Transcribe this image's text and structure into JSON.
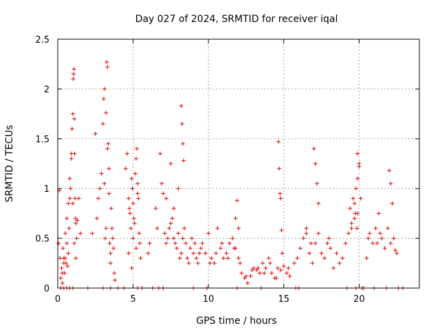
{
  "chart_data": {
    "type": "scatter",
    "title": "Day 027 of 2024, SRMTID for receiver iqal",
    "xlabel": "GPS time / hours",
    "ylabel": "SRMTID / TECUs",
    "xlim": [
      0,
      24
    ],
    "ylim": [
      0,
      2.5
    ],
    "xticks": [
      0,
      5,
      10,
      15,
      20
    ],
    "xtick_labels": [
      "0",
      "5",
      "10",
      "15",
      "20"
    ],
    "yticks": [
      0,
      0.5,
      1,
      1.5,
      2,
      2.5
    ],
    "ytick_labels": [
      "0",
      "0.5",
      "1",
      "1.5",
      "2",
      "2.5"
    ],
    "grid": true,
    "marker": "+",
    "color": "#e00000",
    "series": [
      {
        "name": "SRMTID",
        "x": [
          0.05,
          0.1,
          0.15,
          0.2,
          0.25,
          0.3,
          0.35,
          0.4,
          0.45,
          0.5,
          0.55,
          0.6,
          0.65,
          0.7,
          0.75,
          0.8,
          0.85,
          0.9,
          0.95,
          1.0,
          1.02,
          1.05,
          1.08,
          1.1,
          1.12,
          1.15,
          1.18,
          1.2,
          1.25,
          1.3,
          1.4,
          1.5,
          0.3,
          0.4,
          0.5,
          0.6,
          0.7,
          0.8,
          0.9,
          1.0,
          1.1,
          1.2,
          2.3,
          2.5,
          2.6,
          2.7,
          2.8,
          2.9,
          3.0,
          3.05,
          3.1,
          3.15,
          3.2,
          3.25,
          3.3,
          3.35,
          3.4,
          3.45,
          3.5,
          3.55,
          3.6,
          3.65,
          3.7,
          3.75,
          3.8,
          3.2,
          3.3,
          3.4,
          3.1,
          3.5,
          4.5,
          4.6,
          4.7,
          4.75,
          4.8,
          4.85,
          4.9,
          4.95,
          5.0,
          5.05,
          5.1,
          5.15,
          5.2,
          5.25,
          5.3,
          5.35,
          5.4,
          5.45,
          5.5,
          5.0,
          5.2,
          5.3,
          4.7,
          4.9,
          6.0,
          6.1,
          6.5,
          6.6,
          6.8,
          6.9,
          7.0,
          7.1,
          7.2,
          7.3,
          7.4,
          7.5,
          7.6,
          7.7,
          7.8,
          7.9,
          8.0,
          8.1,
          8.2,
          8.3,
          8.4,
          8.5,
          8.6,
          8.7,
          8.8,
          8.9,
          9.0,
          9.1,
          9.2,
          9.3,
          9.4,
          9.5,
          8.2,
          8.25,
          8.3,
          8.35,
          7.5,
          7.2,
          7.7,
          8.0,
          9.6,
          9.8,
          10.0,
          10.2,
          10.4,
          10.6,
          10.8,
          11.0,
          11.2,
          11.4,
          11.6,
          11.8,
          12.0,
          12.2,
          12.4,
          12.6,
          12.8,
          13.0,
          13.2,
          13.4,
          13.6,
          13.8,
          14.0,
          14.2,
          14.4,
          14.6,
          14.8,
          15.0,
          15.2,
          15.4,
          10.1,
          10.5,
          10.9,
          11.3,
          11.7,
          12.1,
          12.5,
          12.9,
          13.3,
          13.7,
          14.1,
          14.5,
          14.9,
          15.3,
          14.65,
          14.7,
          14.75,
          14.8,
          14.85,
          11.9,
          12.0,
          11.8,
          15.7,
          15.9,
          16.1,
          16.3,
          16.5,
          16.7,
          16.9,
          17.1,
          17.3,
          17.5,
          17.7,
          17.9,
          18.1,
          18.3,
          18.5,
          18.7,
          18.9,
          19.1,
          19.3,
          19.5,
          19.7,
          19.9,
          20.1,
          17.0,
          17.1,
          17.2,
          17.3,
          16.5,
          16.8,
          18.0,
          19.4,
          19.6,
          19.8,
          19.9,
          20.0,
          19.7,
          19.75,
          19.85,
          19.9,
          20.0,
          19.5,
          20.5,
          20.7,
          20.9,
          21.1,
          21.3,
          21.5,
          21.7,
          21.9,
          22.1,
          22.3,
          22.5,
          22.0,
          22.1,
          22.2,
          21.2,
          21.4,
          20.6,
          22.4,
          0.2,
          0.4,
          0.6,
          0.8,
          1.0,
          2.0,
          3.0,
          3.5,
          4.0,
          4.4,
          5.3,
          5.6,
          6.3,
          6.7,
          7.0,
          9.0,
          9.9,
          11.9,
          13.5,
          15.8,
          16.0,
          19.2,
          19.8,
          20.2,
          20.3,
          21.0,
          21.8,
          22.6,
          22.9
        ],
        "y": [
          0.45,
          0.98,
          0.3,
          0.1,
          0.2,
          0.05,
          0.4,
          0.25,
          0.15,
          0.3,
          0.25,
          0.45,
          0.22,
          0.35,
          0.6,
          0.9,
          1.0,
          1.3,
          1.6,
          1.75,
          2.1,
          2.15,
          2.2,
          1.7,
          1.35,
          0.9,
          0.7,
          0.65,
          0.5,
          0.68,
          0.9,
          0.55,
          0.15,
          0.3,
          0.55,
          0.7,
          0.85,
          1.1,
          1.35,
          0.85,
          0.45,
          0.3,
          0.55,
          1.55,
          0.7,
          0.9,
          1.0,
          1.15,
          1.65,
          1.9,
          2.0,
          0.5,
          0.6,
          2.27,
          2.22,
          1.45,
          1.2,
          0.45,
          0.35,
          0.8,
          0.6,
          0.5,
          0.4,
          0.15,
          0.08,
          1.76,
          1.4,
          0.95,
          1.05,
          0.25,
          1.2,
          1.35,
          0.9,
          0.8,
          0.75,
          0.6,
          1.1,
          1.0,
          0.85,
          0.7,
          0.65,
          1.15,
          1.3,
          1.4,
          1.05,
          0.9,
          0.55,
          0.45,
          0.3,
          0.5,
          0.4,
          0.95,
          0.35,
          0.2,
          0.35,
          0.45,
          0.8,
          0.6,
          1.35,
          1.05,
          0.95,
          0.55,
          0.45,
          0.5,
          0.6,
          0.65,
          0.7,
          0.5,
          0.45,
          0.4,
          0.55,
          0.3,
          0.35,
          0.5,
          0.6,
          0.45,
          0.3,
          0.25,
          0.4,
          0.5,
          0.35,
          0.45,
          0.3,
          0.25,
          0.35,
          0.4,
          1.83,
          1.65,
          1.45,
          1.28,
          1.25,
          0.9,
          0.8,
          1.0,
          0.45,
          0.35,
          0.55,
          0.3,
          0.25,
          0.6,
          0.4,
          0.3,
          0.35,
          0.45,
          0.5,
          0.4,
          0.3,
          0.15,
          0.1,
          0.05,
          0.12,
          0.2,
          0.18,
          0.15,
          0.25,
          0.2,
          0.3,
          0.15,
          0.1,
          0.2,
          0.18,
          0.22,
          0.15,
          0.12,
          0.25,
          0.35,
          0.45,
          0.3,
          0.4,
          0.25,
          0.12,
          0.18,
          0.2,
          0.15,
          0.25,
          0.1,
          0.35,
          0.2,
          1.47,
          1.2,
          0.95,
          0.9,
          0.58,
          0.88,
          0.6,
          0.7,
          0.25,
          0.3,
          0.4,
          0.5,
          0.55,
          0.35,
          0.25,
          0.45,
          0.55,
          0.35,
          0.3,
          0.45,
          0.4,
          0.2,
          0.35,
          0.25,
          0.3,
          0.45,
          0.55,
          0.6,
          0.7,
          0.75,
          0.9,
          1.4,
          1.25,
          1.05,
          0.85,
          0.6,
          0.45,
          0.5,
          0.8,
          0.9,
          1.0,
          1.35,
          1.22,
          0.85,
          0.75,
          0.6,
          1.1,
          1.25,
          0.65,
          0.3,
          0.55,
          0.45,
          0.6,
          0.75,
          0.5,
          0.4,
          0.6,
          0.45,
          0.5,
          0.35,
          1.18,
          1.05,
          0.85,
          0.45,
          0.55,
          0.5,
          0.38,
          0,
          0,
          0,
          0,
          0,
          0,
          0,
          0,
          0,
          0,
          0,
          0,
          0,
          0,
          0,
          0,
          0,
          0,
          0,
          0,
          0,
          0,
          0,
          0,
          0,
          0,
          0,
          0,
          0
        ]
      }
    ]
  }
}
